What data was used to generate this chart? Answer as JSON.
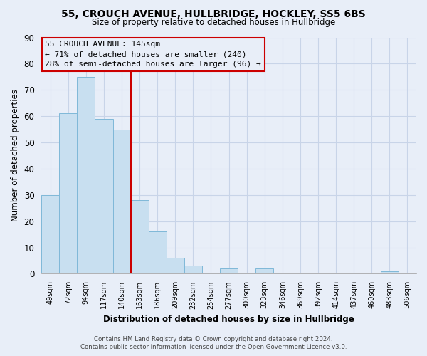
{
  "title": "55, CROUCH AVENUE, HULLBRIDGE, HOCKLEY, SS5 6BS",
  "subtitle": "Size of property relative to detached houses in Hullbridge",
  "xlabel": "Distribution of detached houses by size in Hullbridge",
  "ylabel": "Number of detached properties",
  "bin_labels": [
    "49sqm",
    "72sqm",
    "94sqm",
    "117sqm",
    "140sqm",
    "163sqm",
    "186sqm",
    "209sqm",
    "232sqm",
    "254sqm",
    "277sqm",
    "300sqm",
    "323sqm",
    "346sqm",
    "369sqm",
    "392sqm",
    "414sqm",
    "437sqm",
    "460sqm",
    "483sqm",
    "506sqm"
  ],
  "bar_values": [
    30,
    61,
    75,
    59,
    55,
    28,
    16,
    6,
    3,
    0,
    2,
    0,
    2,
    0,
    0,
    0,
    0,
    0,
    0,
    1,
    0
  ],
  "bar_color": "#c8dff0",
  "bar_edge_color": "#7fb8d8",
  "vline_index": 4,
  "vline_color": "#cc0000",
  "ylim": [
    0,
    90
  ],
  "yticks": [
    0,
    10,
    20,
    30,
    40,
    50,
    60,
    70,
    80,
    90
  ],
  "annotation_text_line1": "55 CROUCH AVENUE: 145sqm",
  "annotation_text_line2": "← 71% of detached houses are smaller (240)",
  "annotation_text_line3": "28% of semi-detached houses are larger (96) →",
  "footer_line1": "Contains HM Land Registry data © Crown copyright and database right 2024.",
  "footer_line2": "Contains public sector information licensed under the Open Government Licence v3.0.",
  "background_color": "#e8eef8",
  "grid_color": "#c8d4e8"
}
